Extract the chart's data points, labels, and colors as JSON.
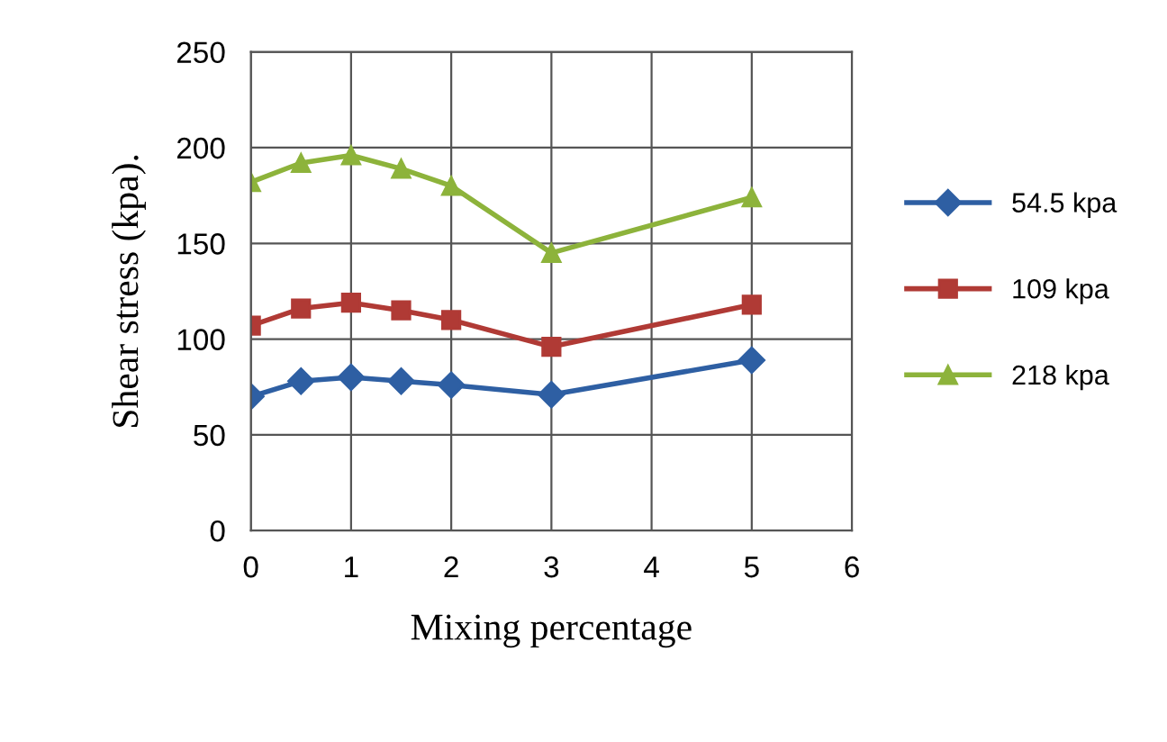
{
  "chart_data": {
    "type": "line",
    "xlabel": "Mixing percentage",
    "ylabel": "Shear stress (kpa).",
    "x": [
      0,
      0.5,
      1,
      1.5,
      2,
      3,
      5
    ],
    "series": [
      {
        "name": "54.5 kpa",
        "color": "#2e5fa3",
        "marker": "diamond",
        "values": [
          70,
          78,
          80,
          78,
          76,
          71,
          89
        ]
      },
      {
        "name": "109 kpa",
        "color": "#b03a35",
        "marker": "square",
        "values": [
          107,
          116,
          119,
          115,
          110,
          96,
          118
        ]
      },
      {
        "name": "218 kpa",
        "color": "#8db33b",
        "marker": "triangle",
        "values": [
          182,
          192,
          196,
          189,
          180,
          145,
          174
        ]
      }
    ],
    "xlim": [
      0,
      6
    ],
    "xticks": [
      0,
      1,
      2,
      3,
      4,
      5,
      6
    ],
    "ylim": [
      0,
      250
    ],
    "yticks": [
      0,
      50,
      100,
      150,
      200,
      250
    ],
    "grid": true,
    "legend": "right",
    "line_style": "solid"
  }
}
